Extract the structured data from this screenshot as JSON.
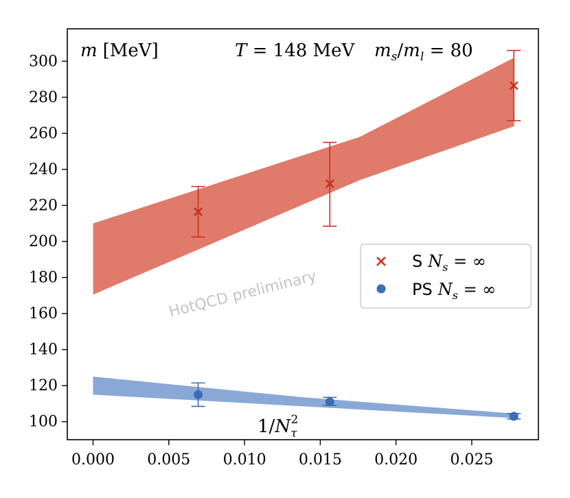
{
  "chart_data": {
    "type": "scatter",
    "title": "T = 148 MeV   m_s/m_l = 80",
    "annotation_left": "m [MeV]",
    "annotation_right_T": "T = 148 MeV",
    "annotation_right_ratio": "m_s/m_l = 80",
    "xlabel": "1/N_τ^2",
    "ylabel": "m [MeV]",
    "xlim": [
      -0.0017,
      0.0294
    ],
    "ylim": [
      90,
      318
    ],
    "xticks": [
      0.0,
      0.005,
      0.01,
      0.015,
      0.02,
      0.025
    ],
    "xtick_labels": [
      "0.000",
      "0.005",
      "0.010",
      "0.015",
      "0.020",
      "0.025"
    ],
    "yticks": [
      100,
      120,
      140,
      160,
      180,
      200,
      220,
      240,
      260,
      280,
      300
    ],
    "ytick_labels": [
      "100",
      "120",
      "140",
      "160",
      "180",
      "200",
      "220",
      "240",
      "260",
      "280",
      "300"
    ],
    "watermark": "HotQCD preliminary",
    "legend_position": "center-right",
    "series": [
      {
        "name": "S N_s = ∞",
        "label_prefix": "S",
        "label_math": "N_s = ∞",
        "marker": "x",
        "color": "#c8321f",
        "band_color": "#e07a6a",
        "x": [
          0.00694,
          0.01563,
          0.02778
        ],
        "y": [
          216.5,
          232.0,
          286.5
        ],
        "yerr_low": [
          202.5,
          208.5,
          267.0
        ],
        "yerr_high": [
          230.5,
          255.0,
          306.0
        ],
        "band": {
          "x": [
            0.0,
            0.0278
          ],
          "lower": [
            170.5,
            264.0
          ],
          "upper": [
            210.0,
            302.0
          ],
          "mid_x": 0.0176,
          "lower_mid": 234.0,
          "upper_mid": 258.0
        }
      },
      {
        "name": "PS N_s = ∞",
        "label_prefix": "PS",
        "label_math": "N_s = ∞",
        "marker": "o",
        "color": "#3a6db5",
        "band_color": "#8aa8d6",
        "x": [
          0.00694,
          0.01563,
          0.02778
        ],
        "y": [
          115.0,
          111.0,
          103.0
        ],
        "yerr_low": [
          108.5,
          109.0,
          101.5
        ],
        "yerr_high": [
          121.5,
          113.5,
          104.5
        ],
        "band": {
          "x": [
            0.0,
            0.0278
          ],
          "lower": [
            115.0,
            102.0
          ],
          "upper": [
            125.0,
            104.5
          ],
          "mid_x": 0.0139,
          "lower_mid": 108.5,
          "upper_mid": 113.5
        }
      }
    ]
  }
}
